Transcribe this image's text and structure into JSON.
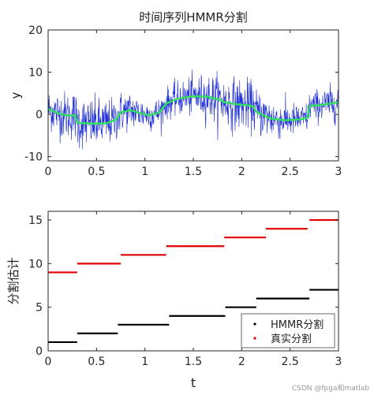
{
  "watermark": "CSDN @fpga和matlab",
  "chart_data": [
    {
      "type": "line",
      "title": "时间序列HMMR分割",
      "xlabel": "",
      "ylabel": "y",
      "xlim": [
        0,
        3
      ],
      "ylim": [
        -11,
        20
      ],
      "xticks": [
        "0",
        "0.5",
        "1",
        "1.5",
        "2",
        "2.5",
        "3"
      ],
      "yticks": [
        "-10",
        "0",
        "10",
        "20"
      ],
      "grid": false,
      "legend": "none",
      "colors": {
        "noisy": "#1f2fd6",
        "smooth": "#2ee05a"
      },
      "series": [
        {
          "role": "noisy-observations",
          "noise_scale": 2.4,
          "x": [
            0,
            0.3,
            0.75,
            1.22,
            1.82,
            2.15,
            2.7,
            3.0
          ],
          "values": [
            0.5,
            -2.0,
            1.0,
            4.0,
            2.5,
            -0.5,
            2.5,
            2.5
          ]
        },
        {
          "role": "fitted-mean",
          "x": [
            0,
            0.1,
            0.2,
            0.28,
            0.3,
            0.45,
            0.6,
            0.7,
            0.75,
            0.85,
            0.95,
            1.05,
            1.15,
            1.22,
            1.35,
            1.5,
            1.65,
            1.78,
            1.82,
            1.95,
            2.05,
            2.12,
            2.15,
            2.3,
            2.45,
            2.6,
            2.68,
            2.7,
            2.8,
            2.9,
            3.0
          ],
          "values": [
            1.3,
            0.3,
            -0.3,
            -0.2,
            -2.0,
            -2.2,
            -2.1,
            -1.3,
            0.5,
            1.0,
            0.3,
            -0.2,
            0.5,
            2.6,
            3.8,
            4.3,
            4.2,
            3.4,
            2.9,
            2.4,
            2.2,
            1.9,
            0.6,
            -1.0,
            -1.4,
            -1.2,
            -0.8,
            2.0,
            2.2,
            2.5,
            2.9
          ]
        }
      ]
    },
    {
      "type": "line",
      "title": "",
      "xlabel": "t",
      "ylabel": "分割估计",
      "xlim": [
        0,
        3
      ],
      "ylim": [
        0,
        16
      ],
      "xticks": [
        "0",
        "0.5",
        "1",
        "1.5",
        "2",
        "2.5",
        "3"
      ],
      "yticks": [
        "0",
        "5",
        "10",
        "15"
      ],
      "grid": false,
      "legend": "bottom-right",
      "colors": {
        "HMMR分割": "#000000",
        "真实分割": "#e00000"
      },
      "series": [
        {
          "name": "HMMR分割",
          "segments": [
            {
              "x0": 0.0,
              "x1": 0.3,
              "y": 1
            },
            {
              "x0": 0.3,
              "x1": 0.72,
              "y": 2
            },
            {
              "x0": 0.72,
              "x1": 1.25,
              "y": 3
            },
            {
              "x0": 1.25,
              "x1": 1.83,
              "y": 4
            },
            {
              "x0": 1.83,
              "x1": 2.15,
              "y": 5
            },
            {
              "x0": 2.15,
              "x1": 2.7,
              "y": 6
            },
            {
              "x0": 2.7,
              "x1": 3.0,
              "y": 7
            }
          ]
        },
        {
          "name": "真实分割",
          "segments": [
            {
              "x0": 0.0,
              "x1": 0.3,
              "y": 9
            },
            {
              "x0": 0.3,
              "x1": 0.75,
              "y": 10
            },
            {
              "x0": 0.75,
              "x1": 1.22,
              "y": 11
            },
            {
              "x0": 1.22,
              "x1": 1.82,
              "y": 12
            },
            {
              "x0": 1.82,
              "x1": 2.25,
              "y": 13
            },
            {
              "x0": 2.25,
              "x1": 2.68,
              "y": 14
            },
            {
              "x0": 2.7,
              "x1": 3.0,
              "y": 15
            }
          ]
        }
      ]
    }
  ]
}
